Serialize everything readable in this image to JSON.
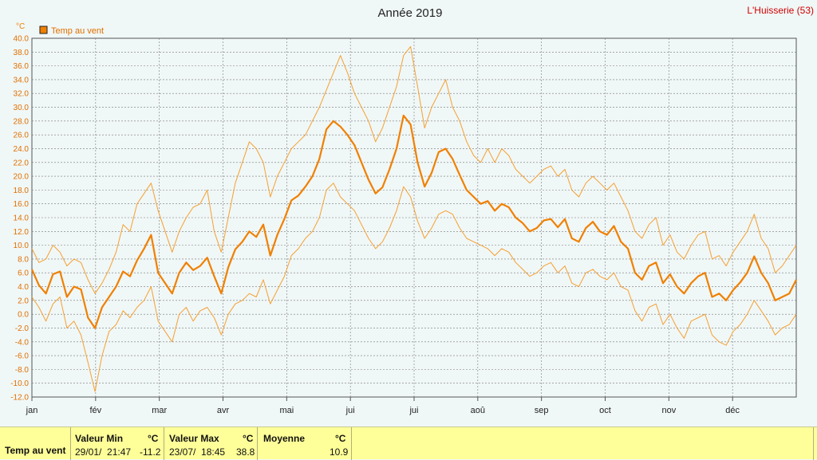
{
  "title": "Année 2019",
  "station": "L'Huisserie (53)",
  "chart_data": {
    "type": "line",
    "title": "Année 2019",
    "ylabel": "°C",
    "ylim": [
      -12,
      40
    ],
    "yticks": [
      "40.0",
      "38.0",
      "36.0",
      "34.0",
      "32.0",
      "30.0",
      "28.0",
      "26.0",
      "24.0",
      "22.0",
      "20.0",
      "18.0",
      "16.0",
      "14.0",
      "12.0",
      "10.0",
      "8.0",
      "6.0",
      "4.0",
      "2.0",
      "0.0",
      "-2.0",
      "-4.0",
      "-6.0",
      "-8.0",
      "-10.0",
      "-12.0"
    ],
    "xticks": [
      "jan",
      "fév",
      "mar",
      "avr",
      "mai",
      "jui",
      "jui",
      "aoû",
      "sep",
      "oct",
      "nov",
      "déc"
    ],
    "grid": true,
    "legend": "top-left",
    "series": [
      {
        "name": "Temp au vent",
        "color": "#f08000",
        "values": [
          6.5,
          4.2,
          3.0,
          5.8,
          6.2,
          2.5,
          4.0,
          3.6,
          -0.5,
          -2.0,
          1.0,
          2.5,
          4.0,
          6.2,
          5.5,
          7.8,
          9.5,
          11.5,
          6.0,
          4.5,
          3.0,
          6.0,
          7.5,
          6.4,
          7.0,
          8.2,
          5.5,
          3.0,
          6.8,
          9.4,
          10.5,
          12.0,
          11.2,
          13.0,
          8.5,
          11.5,
          13.8,
          16.5,
          17.2,
          18.5,
          20.0,
          22.5,
          26.8,
          28.0,
          27.2,
          26.0,
          24.5,
          22.0,
          19.5,
          17.5,
          18.4,
          21.0,
          24.0,
          28.8,
          27.5,
          22.0,
          18.5,
          20.5,
          23.5,
          24.0,
          22.5,
          20.2,
          18.0,
          17.0,
          16.0,
          16.4,
          15.0,
          16.0,
          15.5,
          14.0,
          13.2,
          12.0,
          12.5,
          13.6,
          13.8,
          12.6,
          13.8,
          11.0,
          10.5,
          12.5,
          13.4,
          12.0,
          11.5,
          12.8,
          10.5,
          9.5,
          6.0,
          5.0,
          7.0,
          7.5,
          4.5,
          5.8,
          4.0,
          3.0,
          4.5,
          5.5,
          6.0,
          2.5,
          3.0,
          2.0,
          3.5,
          4.6,
          6.0,
          8.4,
          6.0,
          4.5,
          2.0,
          2.5,
          3.0,
          5.0
        ]
      },
      {
        "name": "max",
        "color": "#f5a030",
        "values": [
          9.5,
          7.5,
          8.0,
          10.0,
          9.0,
          7.0,
          8.0,
          7.5,
          5.0,
          3.0,
          4.5,
          6.5,
          9.0,
          13.0,
          12.0,
          16.0,
          17.5,
          19.0,
          15.0,
          12.0,
          9.0,
          12.0,
          14.0,
          15.5,
          16.0,
          18.0,
          12.0,
          9.0,
          14.0,
          19.0,
          22.0,
          25.0,
          24.0,
          22.0,
          17.0,
          20.0,
          22.0,
          24.0,
          25.0,
          26.0,
          28.0,
          30.0,
          32.5,
          35.0,
          37.5,
          35.0,
          32.0,
          30.0,
          28.0,
          25.0,
          27.0,
          30.0,
          33.0,
          37.5,
          38.8,
          33.0,
          27.0,
          30.0,
          32.0,
          34.0,
          30.0,
          28.0,
          25.0,
          23.0,
          22.0,
          24.0,
          22.0,
          24.0,
          23.0,
          21.0,
          20.0,
          19.0,
          20.0,
          21.0,
          21.5,
          20.0,
          21.0,
          18.0,
          17.0,
          19.0,
          20.0,
          19.0,
          18.0,
          19.0,
          17.0,
          15.0,
          12.0,
          11.0,
          13.0,
          14.0,
          10.0,
          11.5,
          9.0,
          8.0,
          10.0,
          11.5,
          12.0,
          8.0,
          8.5,
          7.0,
          9.0,
          10.5,
          12.0,
          14.5,
          11.0,
          9.5,
          6.0,
          7.0,
          8.5,
          10.0
        ]
      },
      {
        "name": "min",
        "color": "#f5a030",
        "values": [
          2.5,
          1.0,
          -1.0,
          1.5,
          2.5,
          -2.0,
          -1.0,
          -3.0,
          -7.0,
          -11.2,
          -6.0,
          -2.5,
          -1.5,
          0.5,
          -0.5,
          1.0,
          2.0,
          4.0,
          -1.0,
          -2.5,
          -4.0,
          0.0,
          1.0,
          -1.0,
          0.5,
          1.0,
          -0.5,
          -3.0,
          0.0,
          1.5,
          2.0,
          3.0,
          2.5,
          5.0,
          1.5,
          3.5,
          5.5,
          8.5,
          9.5,
          11.0,
          12.0,
          14.0,
          18.0,
          19.0,
          17.0,
          16.0,
          15.0,
          13.0,
          11.0,
          9.5,
          10.5,
          12.5,
          15.0,
          18.5,
          17.0,
          13.5,
          11.0,
          12.5,
          14.5,
          15.0,
          14.5,
          12.5,
          11.0,
          10.5,
          10.0,
          9.5,
          8.5,
          9.5,
          9.0,
          7.5,
          6.5,
          5.5,
          6.0,
          7.0,
          7.5,
          6.0,
          7.0,
          4.5,
          4.0,
          6.0,
          6.5,
          5.5,
          5.0,
          6.0,
          4.0,
          3.5,
          0.5,
          -1.0,
          1.0,
          1.5,
          -1.5,
          0.0,
          -2.0,
          -3.5,
          -1.0,
          -0.5,
          0.0,
          -3.0,
          -4.0,
          -4.5,
          -2.5,
          -1.5,
          0.0,
          2.0,
          0.5,
          -1.0,
          -3.0,
          -2.0,
          -1.5,
          0.0
        ]
      }
    ]
  },
  "stats": {
    "row_label": "Temp au vent",
    "min": {
      "header": "Valeur Min",
      "unit": "°C",
      "date": "29/01/  21:47",
      "value": "-11.2"
    },
    "max": {
      "header": "Valeur Max",
      "unit": "°C",
      "date": "23/07/  18:45",
      "value": "38.8"
    },
    "avg": {
      "header": "Moyenne",
      "unit": "°C",
      "value": "10.9"
    }
  }
}
